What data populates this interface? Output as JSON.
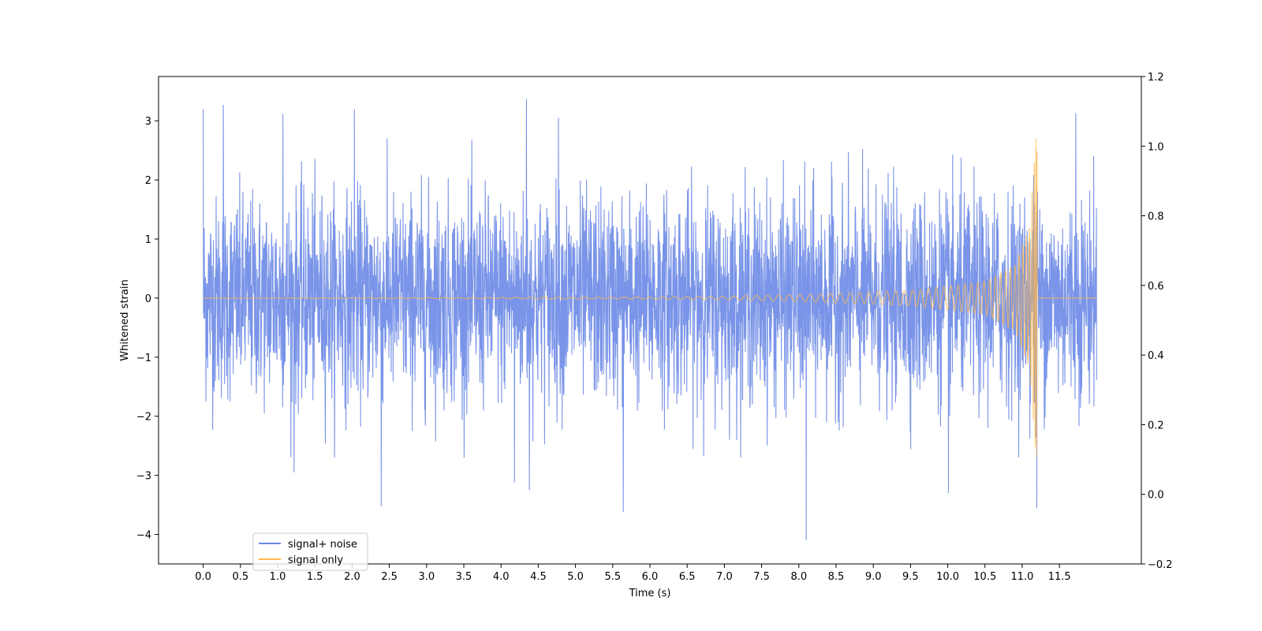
{
  "chart_data": {
    "type": "line",
    "title": "",
    "xlabel": "Time (s)",
    "ylabel": "Whitened strain",
    "xlim": [
      -0.6,
      12.6
    ],
    "ylim": [
      -4.5,
      3.75
    ],
    "y2lim": [
      -0.2,
      1.2
    ],
    "x_ticks": [
      0.0,
      0.5,
      1.0,
      1.5,
      2.0,
      2.5,
      3.0,
      3.5,
      4.0,
      4.5,
      5.0,
      5.5,
      6.0,
      6.5,
      7.0,
      7.5,
      8.0,
      8.5,
      9.0,
      9.5,
      10.0,
      10.5,
      11.0,
      11.5
    ],
    "x_tick_labels": [
      "0.0",
      "0.5",
      "1.0",
      "1.5",
      "2.0",
      "2.5",
      "3.0",
      "3.5",
      "4.0",
      "4.5",
      "5.0",
      "5.5",
      "6.0",
      "6.5",
      "7.0",
      "7.5",
      "8.0",
      "8.5",
      "9.0",
      "9.5",
      "10.0",
      "10.5",
      "11.0",
      "11.5"
    ],
    "y_ticks": [
      -4,
      -3,
      -2,
      -1,
      0,
      1,
      2,
      3
    ],
    "y_tick_labels": [
      "−4",
      "−3",
      "−2",
      "−1",
      "0",
      "1",
      "2",
      "3"
    ],
    "y2_ticks": [
      -0.2,
      0.0,
      0.2,
      0.4,
      0.6,
      0.8,
      1.0,
      1.2
    ],
    "y2_tick_labels": [
      "−0.2",
      "0.0",
      "0.2",
      "0.4",
      "0.6",
      "0.8",
      "1.0",
      "1.2"
    ],
    "legend_position": "lower-left",
    "grid": false,
    "series": [
      {
        "name": "signal+ noise",
        "color": "#6a88e6",
        "description_of_shape": "dense noise filling roughly -1.8..1.8",
        "x_range": [
          0.0,
          12.0
        ],
        "noise_band": [
          -1.8,
          1.8
        ],
        "positive_peaks": [
          {
            "x": 0.0,
            "y": 3.2
          },
          {
            "x": 0.27,
            "y": 3.27
          },
          {
            "x": 1.07,
            "y": 3.12
          },
          {
            "x": 2.03,
            "y": 3.2
          },
          {
            "x": 4.34,
            "y": 3.37
          },
          {
            "x": 4.77,
            "y": 3.05
          },
          {
            "x": 11.72,
            "y": 3.13
          }
        ],
        "negative_peaks": [
          {
            "x": 1.22,
            "y": -2.95
          },
          {
            "x": 2.39,
            "y": -3.52
          },
          {
            "x": 4.18,
            "y": -3.12
          },
          {
            "x": 4.38,
            "y": -3.25
          },
          {
            "x": 5.64,
            "y": -3.62
          },
          {
            "x": 8.1,
            "y": -4.1
          },
          {
            "x": 10.01,
            "y": -3.3
          },
          {
            "x": 11.18,
            "y": -3.45
          }
        ]
      },
      {
        "name": "signal only",
        "color": "#ffb84d",
        "description_of_shape": "chirp with envelope growing toward merger near 11.2 s then zero",
        "x_range": [
          0.0,
          12.0
        ],
        "merger_time": 11.2,
        "peak_amplitude": 2.85,
        "envelope_samples": [
          {
            "x": 6.5,
            "y": 0.02
          },
          {
            "x": 8.0,
            "y": 0.06
          },
          {
            "x": 9.5,
            "y": 0.13
          },
          {
            "x": 10.5,
            "y": 0.28
          },
          {
            "x": 10.9,
            "y": 0.55
          },
          {
            "x": 11.1,
            "y": 1.2
          },
          {
            "x": 11.19,
            "y": 2.85
          }
        ]
      }
    ]
  }
}
